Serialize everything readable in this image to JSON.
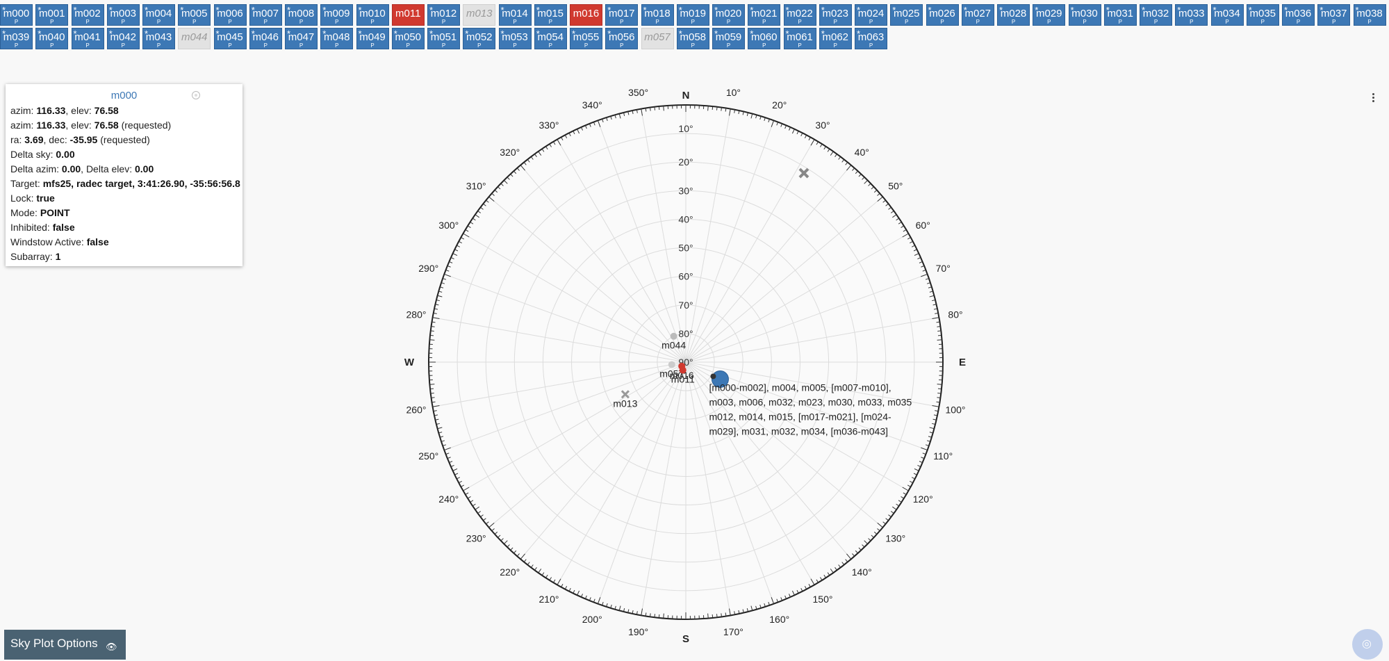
{
  "antennas_row1": [
    {
      "name": "m000",
      "state": "blue",
      "star": true
    },
    {
      "name": "m001",
      "state": "blue",
      "star": true
    },
    {
      "name": "m002",
      "state": "blue",
      "star": true
    },
    {
      "name": "m003",
      "state": "blue",
      "star": true
    },
    {
      "name": "m004",
      "state": "blue",
      "star": true
    },
    {
      "name": "m005",
      "state": "blue",
      "star": true
    },
    {
      "name": "m006",
      "state": "blue",
      "star": true
    },
    {
      "name": "m007",
      "state": "blue",
      "star": true
    },
    {
      "name": "m008",
      "state": "blue",
      "star": true
    },
    {
      "name": "m009",
      "state": "blue",
      "star": true
    },
    {
      "name": "m010",
      "state": "blue",
      "star": true
    },
    {
      "name": "m011",
      "state": "red",
      "star": false
    },
    {
      "name": "m012",
      "state": "blue",
      "star": true
    },
    {
      "name": "m013",
      "state": "gray",
      "star": false
    },
    {
      "name": "m014",
      "state": "blue",
      "star": true
    },
    {
      "name": "m015",
      "state": "blue",
      "star": true
    },
    {
      "name": "m016",
      "state": "red",
      "star": false
    },
    {
      "name": "m017",
      "state": "blue",
      "star": true
    },
    {
      "name": "m018",
      "state": "blue",
      "star": true
    },
    {
      "name": "m019",
      "state": "blue",
      "star": true
    },
    {
      "name": "m020",
      "state": "blue",
      "star": true
    },
    {
      "name": "m021",
      "state": "blue",
      "star": true
    },
    {
      "name": "m022",
      "state": "blue",
      "star": true
    },
    {
      "name": "m023",
      "state": "blue",
      "star": true
    },
    {
      "name": "m024",
      "state": "blue",
      "star": true
    },
    {
      "name": "m025",
      "state": "blue",
      "star": true
    },
    {
      "name": "m026",
      "state": "blue",
      "star": true
    },
    {
      "name": "m027",
      "state": "blue",
      "star": true
    },
    {
      "name": "m028",
      "state": "blue",
      "star": true
    },
    {
      "name": "m029",
      "state": "blue",
      "star": true
    },
    {
      "name": "m030",
      "state": "blue",
      "star": true
    },
    {
      "name": "m031",
      "state": "blue",
      "star": true
    },
    {
      "name": "m032",
      "state": "blue",
      "star": true
    },
    {
      "name": "m033",
      "state": "blue",
      "star": true
    },
    {
      "name": "m034",
      "state": "blue",
      "star": true
    },
    {
      "name": "m035",
      "state": "blue",
      "star": true
    },
    {
      "name": "m036",
      "state": "blue",
      "star": true
    },
    {
      "name": "m037",
      "state": "blue",
      "star": true
    },
    {
      "name": "m038",
      "state": "blue",
      "star": true
    }
  ],
  "antennas_row2": [
    {
      "name": "m039",
      "state": "blue",
      "star": true
    },
    {
      "name": "m040",
      "state": "blue",
      "star": true
    },
    {
      "name": "m041",
      "state": "blue",
      "star": true
    },
    {
      "name": "m042",
      "state": "blue",
      "star": true
    },
    {
      "name": "m043",
      "state": "blue",
      "star": true
    },
    {
      "name": "m044",
      "state": "gray",
      "star": false
    },
    {
      "name": "m045",
      "state": "blue",
      "star": true
    },
    {
      "name": "m046",
      "state": "blue",
      "star": true
    },
    {
      "name": "m047",
      "state": "blue",
      "star": true
    },
    {
      "name": "m048",
      "state": "blue",
      "star": true
    },
    {
      "name": "m049",
      "state": "blue",
      "star": true
    },
    {
      "name": "m050",
      "state": "blue",
      "star": true
    },
    {
      "name": "m051",
      "state": "blue",
      "star": true
    },
    {
      "name": "m052",
      "state": "blue",
      "star": true
    },
    {
      "name": "m053",
      "state": "blue",
      "star": true
    },
    {
      "name": "m054",
      "state": "blue",
      "star": true
    },
    {
      "name": "m055",
      "state": "blue",
      "star": true
    },
    {
      "name": "m056",
      "state": "blue",
      "star": true
    },
    {
      "name": "m057",
      "state": "gray",
      "star": false
    },
    {
      "name": "m058",
      "state": "blue",
      "star": true
    },
    {
      "name": "m059",
      "state": "blue",
      "star": true
    },
    {
      "name": "m060",
      "state": "blue",
      "star": true
    },
    {
      "name": "m061",
      "state": "blue",
      "star": true
    },
    {
      "name": "m062",
      "state": "blue",
      "star": true
    },
    {
      "name": "m063",
      "state": "blue",
      "star": true
    }
  ],
  "antenna_sub_label": "P",
  "colors": {
    "blue": "#3d78b5",
    "red": "#d0392f",
    "gray": "#e2e2e2"
  },
  "info": {
    "title": "m000",
    "rows": [
      [
        {
          "t": "azim: "
        },
        {
          "b": "116.33"
        },
        {
          "t": ", elev: "
        },
        {
          "b": "76.58"
        }
      ],
      [
        {
          "t": "azim: "
        },
        {
          "b": "116.33"
        },
        {
          "t": ", elev: "
        },
        {
          "b": "76.58"
        },
        {
          "t": " (requested)"
        }
      ],
      [
        {
          "t": "ra: "
        },
        {
          "b": "3.69"
        },
        {
          "t": ", dec: "
        },
        {
          "b": "-35.95"
        },
        {
          "t": " (requested)"
        }
      ],
      [
        {
          "t": "Delta sky: "
        },
        {
          "b": "0.00"
        }
      ],
      [
        {
          "t": "Delta azim: "
        },
        {
          "b": "0.00"
        },
        {
          "t": ", Delta elev: "
        },
        {
          "b": "0.00"
        }
      ],
      [
        {
          "t": "Target: "
        },
        {
          "b": "mfs25, radec target, 3:41:26.90, -35:56:56.8"
        }
      ],
      [
        {
          "t": "Lock: "
        },
        {
          "b": "true"
        }
      ],
      [
        {
          "t": "Mode: "
        },
        {
          "b": "POINT"
        }
      ],
      [
        {
          "t": "Inhibited: "
        },
        {
          "b": "false"
        }
      ],
      [
        {
          "t": "Windstow Active: "
        },
        {
          "b": "false"
        }
      ],
      [
        {
          "t": "Subarray: "
        },
        {
          "b": "1"
        }
      ]
    ]
  },
  "sky": {
    "cardinals": [
      "N",
      "E",
      "S",
      "W"
    ],
    "azimuth_labels": [
      "10°",
      "20°",
      "30°",
      "40°",
      "50°",
      "60°",
      "70°",
      "80°",
      "100°",
      "110°",
      "120°",
      "130°",
      "140°",
      "150°",
      "160°",
      "170°",
      "190°",
      "200°",
      "210°",
      "220°",
      "230°",
      "240°",
      "250°",
      "260°",
      "280°",
      "290°",
      "300°",
      "310°",
      "320°",
      "330°",
      "340°",
      "350°"
    ],
    "elevation_labels": [
      "10°",
      "20°",
      "30°",
      "40°",
      "50°",
      "60°",
      "70°",
      "80°",
      "90°"
    ],
    "markers": [
      {
        "label": "m013",
        "az": 242,
        "el": 66,
        "color": "#999999",
        "shape": "cross"
      },
      {
        "label": "",
        "az": 32,
        "el": 12,
        "color": "#888888",
        "shape": "x"
      },
      {
        "label": "m044",
        "az": 335,
        "el": 80,
        "color": "#bbbbbb",
        "shape": "dot"
      },
      {
        "label": "m057",
        "az": 260,
        "el": 85,
        "color": "#cccccc",
        "shape": "dot"
      },
      {
        "label": "m016",
        "az": 225,
        "el": 88,
        "color": "#d0392f",
        "shape": "dot"
      },
      {
        "label": "m011",
        "az": 200,
        "el": 87,
        "color": "#d0392f",
        "shape": "dot"
      },
      {
        "label": "",
        "az": 116.33,
        "el": 76.58,
        "color": "#3d78b5",
        "shape": "big"
      }
    ],
    "cluster_label_lines": [
      "[m000-m002], m004, m005, [m007-m010],",
      "m003, m006, m032, m023, m030, m033, m035",
      "m012, m014, m015, [m017-m021], [m024-",
      "m029], m031, m032, m034, [m036-m043]"
    ]
  },
  "options_button": {
    "label": "Sky Plot Options"
  }
}
